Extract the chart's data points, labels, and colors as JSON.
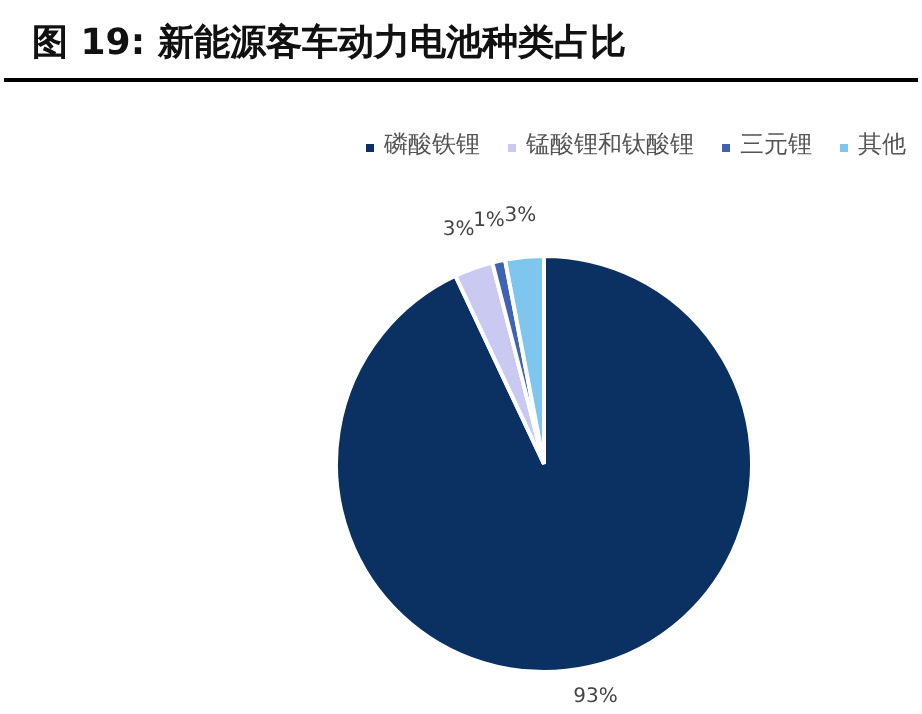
{
  "chart_data": {
    "type": "pie",
    "title": "图 19:  新能源客车动力电池种类占比",
    "categories": [
      "磷酸铁锂",
      "锰酸锂和钛酸锂",
      "三元锂",
      "其他"
    ],
    "values": [
      93,
      3,
      1,
      3
    ],
    "value_labels": [
      "93%",
      "3%",
      "1%",
      "3%"
    ],
    "colors": [
      "#0b3163",
      "#c9c9f2",
      "#3f62b3",
      "#7fc6ee"
    ],
    "legend": "top right"
  }
}
